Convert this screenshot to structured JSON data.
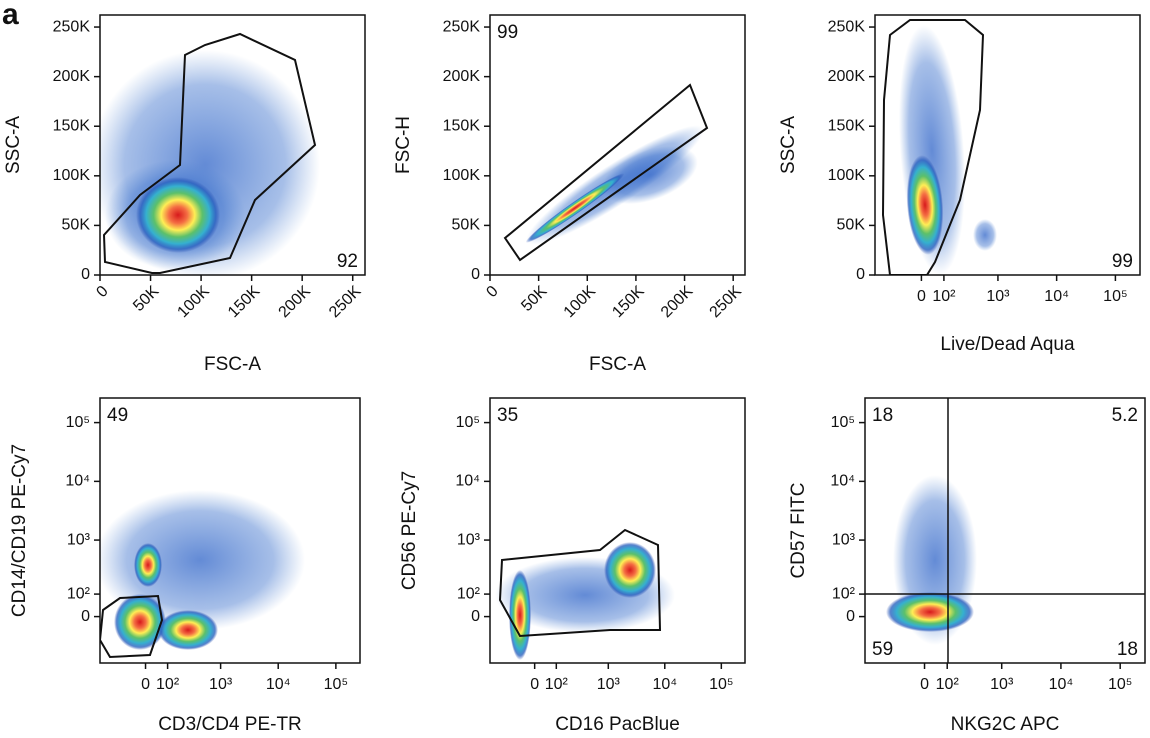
{
  "panel_label": "a",
  "chart_data": [
    {
      "type": "scatter",
      "xlabel": "FSC-A",
      "ylabel": "SSC-A",
      "xscale": "linear",
      "yscale": "linear",
      "xlim": [
        0,
        262144
      ],
      "ylim": [
        0,
        262144
      ],
      "xticks": [
        0,
        {
          "value": 50000,
          "label": "50K"
        },
        {
          "value": 100000,
          "label": "100K"
        },
        {
          "value": 150000,
          "label": "150K"
        },
        {
          "value": 200000,
          "label": "200K"
        },
        {
          "value": 250000,
          "label": "250K"
        }
      ],
      "yticks": [
        0,
        {
          "value": 50000,
          "label": "50K"
        },
        {
          "value": 100000,
          "label": "100K"
        },
        {
          "value": 150000,
          "label": "150K"
        },
        {
          "value": 200000,
          "label": "200K"
        },
        {
          "value": 250000,
          "label": "250K"
        }
      ],
      "gate_labels": [
        92
      ],
      "gate_label_corner": "bottom-right"
    },
    {
      "type": "scatter",
      "xlabel": "FSC-A",
      "ylabel": "FSC-H",
      "xscale": "linear",
      "yscale": "linear",
      "xlim": [
        0,
        262144
      ],
      "ylim": [
        0,
        262144
      ],
      "xticks": [
        0,
        {
          "value": 50000,
          "label": "50K"
        },
        {
          "value": 100000,
          "label": "100K"
        },
        {
          "value": 150000,
          "label": "150K"
        },
        {
          "value": 200000,
          "label": "200K"
        },
        {
          "value": 250000,
          "label": "250K"
        }
      ],
      "yticks": [
        0,
        {
          "value": 50000,
          "label": "50K"
        },
        {
          "value": 100000,
          "label": "100K"
        },
        {
          "value": 150000,
          "label": "150K"
        },
        {
          "value": 200000,
          "label": "200K"
        },
        {
          "value": 250000,
          "label": "250K"
        }
      ],
      "gate_labels": [
        99
      ],
      "gate_label_corner": "top-left"
    },
    {
      "type": "scatter",
      "xlabel": "Live/Dead Aqua",
      "ylabel": "SSC-A",
      "xscale": "biexponential",
      "yscale": "linear",
      "xlim": [
        -300,
        262144
      ],
      "ylim": [
        0,
        262144
      ],
      "xticks": [
        0,
        {
          "value": 100,
          "label": "10²"
        },
        {
          "value": 1000,
          "label": "10³"
        },
        {
          "value": 10000,
          "label": "10⁴"
        },
        {
          "value": 100000,
          "label": "10⁵"
        }
      ],
      "yticks": [
        0,
        {
          "value": 50000,
          "label": "50K"
        },
        {
          "value": 100000,
          "label": "100K"
        },
        {
          "value": 150000,
          "label": "150K"
        },
        {
          "value": 200000,
          "label": "200K"
        },
        {
          "value": 250000,
          "label": "250K"
        }
      ],
      "gate_labels": [
        99
      ],
      "gate_label_corner": "bottom-right"
    },
    {
      "type": "scatter",
      "xlabel": "CD3/CD4 PE-TR",
      "ylabel": "CD14/CD19 PE-Cy7",
      "xscale": "biexponential",
      "yscale": "biexponential",
      "xlim": [
        -300,
        262144
      ],
      "ylim": [
        -300,
        262144
      ],
      "xticks": [
        0,
        {
          "value": 100,
          "label": "10²"
        },
        {
          "value": 1000,
          "label": "10³"
        },
        {
          "value": 10000,
          "label": "10⁴"
        },
        {
          "value": 100000,
          "label": "10⁵"
        }
      ],
      "yticks": [
        0,
        {
          "value": 100,
          "label": "10²"
        },
        {
          "value": 1000,
          "label": "10³"
        },
        {
          "value": 10000,
          "label": "10⁴"
        },
        {
          "value": 100000,
          "label": "10⁵"
        }
      ],
      "gate_labels": [
        49
      ],
      "gate_label_corner": "top-left"
    },
    {
      "type": "scatter",
      "xlabel": "CD16 PacBlue",
      "ylabel": "CD56 PE-Cy7",
      "xscale": "biexponential",
      "yscale": "biexponential",
      "xlim": [
        -300,
        262144
      ],
      "ylim": [
        -300,
        262144
      ],
      "xticks": [
        0,
        {
          "value": 100,
          "label": "10²"
        },
        {
          "value": 1000,
          "label": "10³"
        },
        {
          "value": 10000,
          "label": "10⁴"
        },
        {
          "value": 100000,
          "label": "10⁵"
        }
      ],
      "yticks": [
        0,
        {
          "value": 100,
          "label": "10²"
        },
        {
          "value": 1000,
          "label": "10³"
        },
        {
          "value": 10000,
          "label": "10⁴"
        },
        {
          "value": 100000,
          "label": "10⁵"
        }
      ],
      "gate_labels": [
        35
      ],
      "gate_label_corner": "top-left"
    },
    {
      "type": "scatter",
      "xlabel": "NKG2C APC",
      "ylabel": "CD57 FITC",
      "xscale": "biexponential",
      "yscale": "biexponential",
      "xlim": [
        -500,
        262144
      ],
      "ylim": [
        -300,
        262144
      ],
      "xticks": [
        0,
        {
          "value": 100,
          "label": "10²"
        },
        {
          "value": 1000,
          "label": "10³"
        },
        {
          "value": 10000,
          "label": "10⁴"
        },
        {
          "value": 100000,
          "label": "10⁵"
        }
      ],
      "yticks": [
        0,
        {
          "value": 100,
          "label": "10²"
        },
        {
          "value": 1000,
          "label": "10³"
        },
        {
          "value": 10000,
          "label": "10⁴"
        },
        {
          "value": 100000,
          "label": "10⁵"
        }
      ],
      "gate_labels": [
        18,
        5.2,
        59,
        18
      ],
      "gate_label_corner": "quadrants"
    }
  ]
}
